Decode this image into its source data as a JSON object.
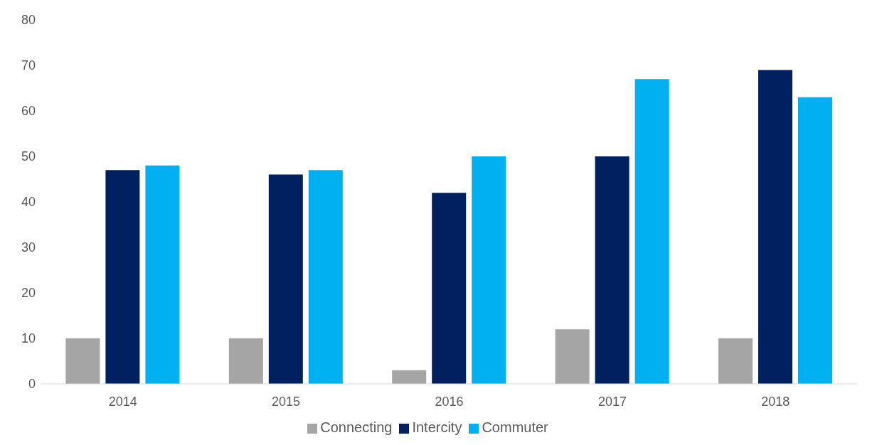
{
  "chart_data": {
    "type": "bar",
    "categories": [
      "2014",
      "2015",
      "2016",
      "2017",
      "2018"
    ],
    "series": [
      {
        "name": "Connecting",
        "color": "#a5a5a5",
        "values": [
          10,
          10,
          3,
          12,
          10
        ]
      },
      {
        "name": "Intercity",
        "color": "#002060",
        "values": [
          47,
          46,
          42,
          50,
          69
        ]
      },
      {
        "name": "Commuter",
        "color": "#00b0f0",
        "values": [
          48,
          47,
          50,
          67,
          63
        ]
      }
    ],
    "ylim": [
      0,
      80
    ],
    "yticks": [
      0,
      10,
      20,
      30,
      40,
      50,
      60,
      70,
      80
    ],
    "grid": false,
    "legend": "bottom"
  }
}
